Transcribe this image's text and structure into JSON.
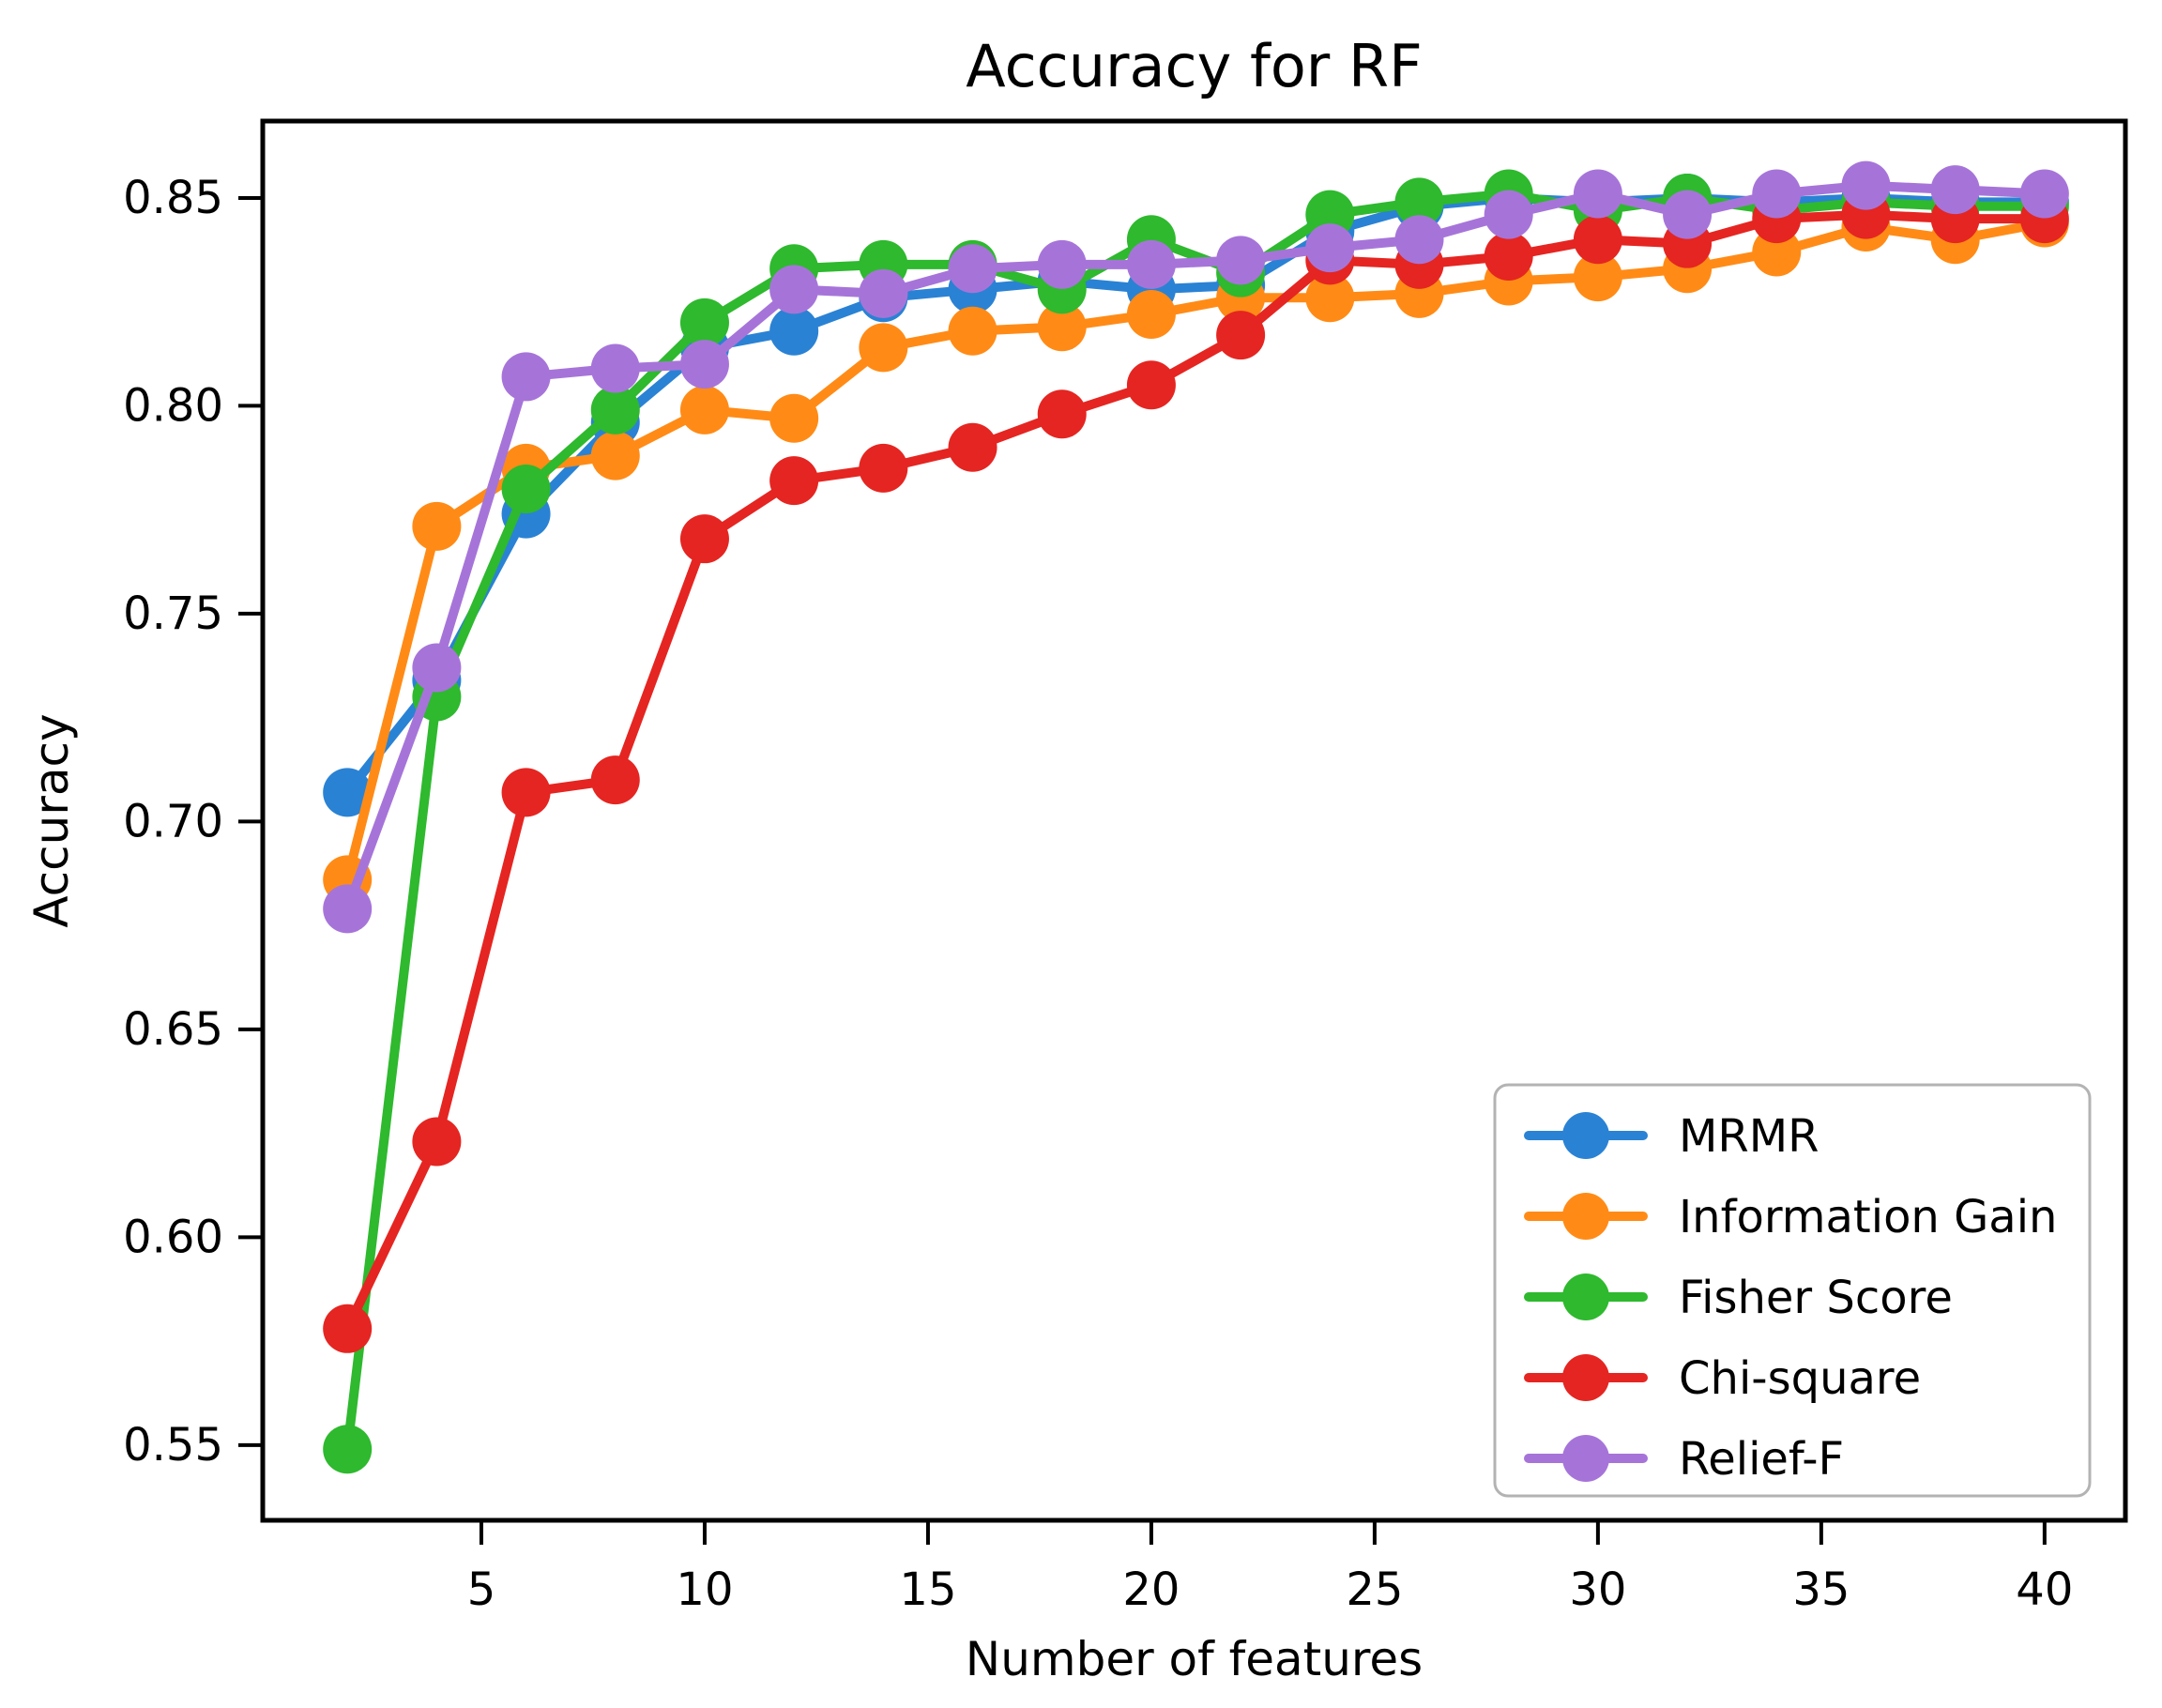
{
  "figure": {
    "title": "Accuracy for RF",
    "xlabel": "Number of features",
    "ylabel": "Accuracy",
    "background_color": "#ffffff",
    "axis_color": "#000000",
    "legend_border_color": "#b3b3b3",
    "legend_background": "#ffffff"
  },
  "chart_data": {
    "type": "line",
    "title": "Accuracy for RF",
    "xlabel": "Number of features",
    "ylabel": "Accuracy",
    "grid": false,
    "legend_position": "lower right",
    "xlim": [
      0.105,
      41.81
    ],
    "ylim": [
      0.5319,
      0.8685
    ],
    "x_ticks": [
      5,
      10,
      15,
      20,
      25,
      30,
      35,
      40
    ],
    "x_tick_labels": [
      "5",
      "10",
      "15",
      "20",
      "25",
      "30",
      "35",
      "40"
    ],
    "y_ticks": [
      0.55,
      0.6,
      0.65,
      0.7,
      0.75,
      0.8,
      0.85
    ],
    "y_tick_labels": [
      "0.55",
      "0.60",
      "0.65",
      "0.70",
      "0.75",
      "0.80",
      "0.85"
    ],
    "x": [
      2,
      4,
      6,
      8,
      10,
      12,
      14,
      16,
      18,
      20,
      22,
      24,
      26,
      28,
      30,
      32,
      34,
      36,
      38,
      40
    ],
    "series": [
      {
        "name": "MRMR",
        "color": "#2a82d4",
        "values": [
          0.707,
          0.734,
          0.774,
          0.796,
          0.814,
          0.818,
          0.826,
          0.828,
          0.83,
          0.828,
          0.829,
          0.842,
          0.848,
          0.85,
          0.849,
          0.85,
          0.849,
          0.85,
          0.849,
          0.849
        ]
      },
      {
        "name": "Information Gain",
        "color": "#ff8b16",
        "values": [
          0.686,
          0.771,
          0.785,
          0.788,
          0.799,
          0.797,
          0.814,
          0.818,
          0.819,
          0.822,
          0.826,
          0.826,
          0.827,
          0.83,
          0.831,
          0.833,
          0.837,
          0.843,
          0.84,
          0.844
        ]
      },
      {
        "name": "Fisher Score",
        "color": "#2eb92e",
        "values": [
          0.549,
          0.73,
          0.78,
          0.799,
          0.82,
          0.833,
          0.834,
          0.834,
          0.828,
          0.84,
          0.832,
          0.846,
          0.849,
          0.851,
          0.847,
          0.85,
          0.847,
          0.849,
          0.848,
          0.848
        ]
      },
      {
        "name": "Chi-square",
        "color": "#e52521",
        "values": [
          0.578,
          0.623,
          0.707,
          0.71,
          0.768,
          0.782,
          0.785,
          0.79,
          0.798,
          0.805,
          0.817,
          0.835,
          0.834,
          0.836,
          0.84,
          0.839,
          0.845,
          0.846,
          0.845,
          0.845
        ]
      },
      {
        "name": "Relief-F",
        "color": "#a674d9",
        "values": [
          0.679,
          0.737,
          0.807,
          0.809,
          0.81,
          0.828,
          0.827,
          0.833,
          0.834,
          0.834,
          0.835,
          0.838,
          0.84,
          0.846,
          0.851,
          0.846,
          0.851,
          0.853,
          0.852,
          0.851
        ]
      }
    ]
  }
}
